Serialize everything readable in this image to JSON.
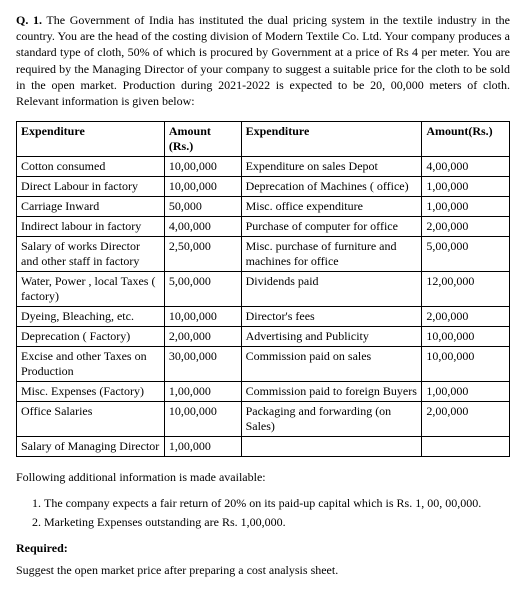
{
  "question": {
    "number": "Q. 1.",
    "text": "The Government of India has instituted the dual pricing system in the textile industry in the country. You are the head of the costing division of Modern Textile Co. Ltd. Your company produces a standard type of cloth, 50% of which is procured by Government at a price of Rs 4 per meter. You are required by the Managing Director of your company to suggest a suitable price for the cloth to be sold in the open market. Production during 2021-2022 is expected to be 20, 00,000 meters of cloth. Relevant information is given below:"
  },
  "table": {
    "headers": {
      "c1": "Expenditure",
      "c2": "Amount (Rs.)",
      "c3": "Expenditure",
      "c4": "Amount(Rs.)"
    },
    "rows": [
      {
        "c1": "Cotton consumed",
        "c2": "10,00,000",
        "c3": "Expenditure on sales Depot",
        "c4": "4,00,000"
      },
      {
        "c1": "Direct Labour in factory",
        "c2": "10,00,000",
        "c3": "Deprecation of Machines ( office)",
        "c4": "1,00,000"
      },
      {
        "c1": "Carriage Inward",
        "c2": "50,000",
        "c3": "Misc. office expenditure",
        "c4": "1,00,000"
      },
      {
        "c1": "Indirect labour in factory",
        "c2": "4,00,000",
        "c3": "Purchase of computer for office",
        "c4": "2,00,000"
      },
      {
        "c1": "Salary of works Director and other staff in factory",
        "c2": "2,50,000",
        "c3": "Misc. purchase of furniture and machines for office",
        "c4": "5,00,000"
      },
      {
        "c1": "Water, Power , local Taxes ( factory)",
        "c2": "5,00,000",
        "c3": "Dividends paid",
        "c4": "12,00,000"
      },
      {
        "c1": "Dyeing, Bleaching, etc.",
        "c2": "10,00,000",
        "c3": "Director's fees",
        "c4": "2,00,000"
      },
      {
        "c1": "Deprecation ( Factory)",
        "c2": "2,00,000",
        "c3": "Advertising and Publicity",
        "c4": "10,00,000"
      },
      {
        "c1": "Excise and other Taxes on Production",
        "c2": "30,00,000",
        "c3": "Commission paid on sales",
        "c4": "10,00,000"
      },
      {
        "c1": "Misc. Expenses (Factory)",
        "c2": "1,00,000",
        "c3": "Commission paid to foreign Buyers",
        "c4": "1,00,000"
      },
      {
        "c1": "Office Salaries",
        "c2": "10,00,000",
        "c3": "Packaging and forwarding (on Sales)",
        "c4": "2,00,000"
      },
      {
        "c1": "Salary of Managing Director",
        "c2": "1,00,000",
        "c3": "",
        "c4": ""
      }
    ]
  },
  "additional_intro": "Following additional information is made available:",
  "additional_items": {
    "i1": "The company expects a fair return of 20% on its paid-up capital which is Rs. 1, 00, 00,000.",
    "i2": "Marketing Expenses outstanding are Rs. 1,00,000."
  },
  "required_label": "Required:",
  "required_text": "Suggest the open market price after preparing a cost analysis sheet."
}
